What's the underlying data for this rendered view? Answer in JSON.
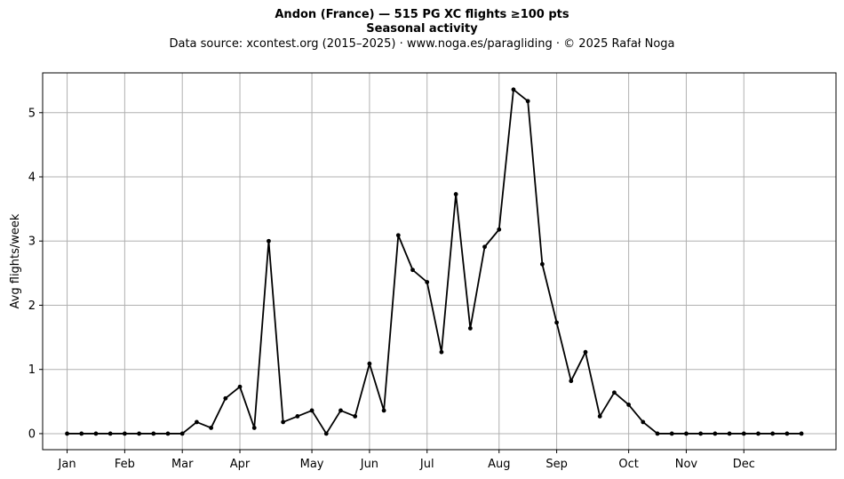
{
  "chart_data": {
    "type": "line",
    "title": "Andon (France)  —  515 PG XC flights ≥100 pts",
    "subtitle": "Seasonal activity",
    "source": "Data source: xcontest.org (2015–2025)  ·  www.noga.es/paragliding  ·  © 2025 Rafał Noga",
    "xlabel": "",
    "ylabel": "Avg flights/week",
    "ylim": [
      -0.25,
      5.62
    ],
    "yticks": [
      "0",
      "1",
      "2",
      "3",
      "4",
      "5"
    ],
    "x_tick_labels": [
      "Jan",
      "Feb",
      "Mar",
      "Apr",
      "May",
      "Jun",
      "Jul",
      "Aug",
      "Sep",
      "Oct",
      "Nov",
      "Dec"
    ],
    "x_tick_weeks": [
      1,
      5,
      9,
      13,
      18,
      22,
      26,
      31,
      35,
      40,
      44,
      48
    ],
    "xlim": [
      -0.7,
      54.4
    ],
    "grid": true,
    "color": "#000000",
    "series": [
      {
        "x": [
          1,
          2,
          3,
          4,
          5,
          6,
          7,
          8,
          9,
          10,
          11,
          12,
          13,
          14,
          15,
          16,
          17,
          18,
          19,
          20,
          21,
          22,
          23,
          24,
          25,
          26,
          27,
          28,
          29,
          30,
          31,
          32,
          33,
          34,
          35,
          36,
          37,
          38,
          39,
          40,
          41,
          42,
          43,
          44,
          45,
          46,
          47,
          48,
          49,
          50,
          51,
          52
        ],
        "values": [
          0,
          0,
          0,
          0,
          0,
          0,
          0,
          0,
          0,
          0.18,
          0.09,
          0.55,
          0.73,
          0.09,
          3.0,
          0.18,
          0.27,
          0.36,
          0,
          0.36,
          0.27,
          1.09,
          0.36,
          3.09,
          2.55,
          2.36,
          1.27,
          3.73,
          1.64,
          2.91,
          3.18,
          5.36,
          5.18,
          2.64,
          1.73,
          0.82,
          1.27,
          0.27,
          0.64,
          0.45,
          0.18,
          0,
          0,
          0,
          0,
          0,
          0,
          0,
          0,
          0,
          0,
          0
        ]
      }
    ]
  }
}
